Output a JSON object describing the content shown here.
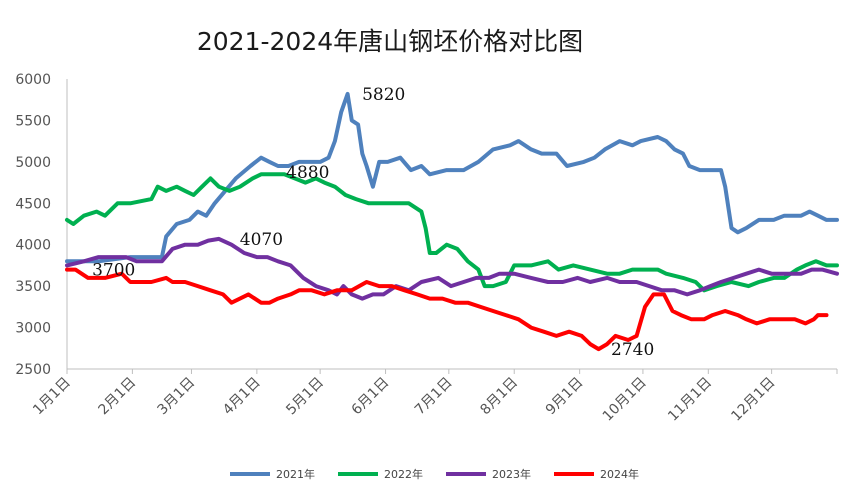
{
  "chart_data": {
    "type": "line",
    "title": "2021-2024年唐山钢坯价格对比图",
    "xlabel": "",
    "ylabel": "",
    "ylim": [
      2500,
      6000
    ],
    "yticks": [
      2500,
      3000,
      3500,
      4000,
      4500,
      5000,
      5500,
      6000
    ],
    "xlim": [
      0,
      365
    ],
    "xticks": [
      {
        "label": "1月1日",
        "day": 0
      },
      {
        "label": "2月1日",
        "day": 31
      },
      {
        "label": "3月1日",
        "day": 59
      },
      {
        "label": "4月1日",
        "day": 90
      },
      {
        "label": "5月1日",
        "day": 120
      },
      {
        "label": "6月1日",
        "day": 151
      },
      {
        "label": "7月1日",
        "day": 181
      },
      {
        "label": "8月1日",
        "day": 212
      },
      {
        "label": "9月1日",
        "day": 243
      },
      {
        "label": "10月1日",
        "day": 273
      },
      {
        "label": "11月1日",
        "day": 304
      },
      {
        "label": "12月1日",
        "day": 334
      }
    ],
    "grid": false,
    "legend_position": "bottom",
    "series": [
      {
        "name": "2021年",
        "color": "#4f81bd",
        "points": [
          [
            0,
            3800
          ],
          [
            15,
            3800
          ],
          [
            30,
            3850
          ],
          [
            45,
            3850
          ],
          [
            47,
            4100
          ],
          [
            52,
            4250
          ],
          [
            58,
            4300
          ],
          [
            62,
            4400
          ],
          [
            66,
            4350
          ],
          [
            70,
            4500
          ],
          [
            75,
            4650
          ],
          [
            80,
            4800
          ],
          [
            87,
            4950
          ],
          [
            92,
            5050
          ],
          [
            96,
            5000
          ],
          [
            100,
            4950
          ],
          [
            105,
            4950
          ],
          [
            110,
            5000
          ],
          [
            120,
            5000
          ],
          [
            124,
            5050
          ],
          [
            127,
            5250
          ],
          [
            130,
            5600
          ],
          [
            133,
            5820
          ],
          [
            135,
            5500
          ],
          [
            138,
            5450
          ],
          [
            140,
            5100
          ],
          [
            142,
            4950
          ],
          [
            145,
            4700
          ],
          [
            148,
            5000
          ],
          [
            152,
            5000
          ],
          [
            158,
            5050
          ],
          [
            163,
            4900
          ],
          [
            168,
            4950
          ],
          [
            172,
            4850
          ],
          [
            180,
            4900
          ],
          [
            188,
            4900
          ],
          [
            195,
            5000
          ],
          [
            202,
            5150
          ],
          [
            210,
            5200
          ],
          [
            214,
            5250
          ],
          [
            220,
            5150
          ],
          [
            225,
            5100
          ],
          [
            232,
            5100
          ],
          [
            237,
            4950
          ],
          [
            245,
            5000
          ],
          [
            250,
            5050
          ],
          [
            255,
            5150
          ],
          [
            262,
            5250
          ],
          [
            268,
            5200
          ],
          [
            272,
            5250
          ],
          [
            280,
            5300
          ],
          [
            284,
            5250
          ],
          [
            288,
            5150
          ],
          [
            292,
            5100
          ],
          [
            295,
            4950
          ],
          [
            300,
            4900
          ],
          [
            310,
            4900
          ],
          [
            312,
            4700
          ],
          [
            315,
            4200
          ],
          [
            318,
            4150
          ],
          [
            322,
            4200
          ],
          [
            328,
            4300
          ],
          [
            335,
            4300
          ],
          [
            340,
            4350
          ],
          [
            348,
            4350
          ],
          [
            352,
            4400
          ],
          [
            356,
            4350
          ],
          [
            360,
            4300
          ],
          [
            365,
            4300
          ]
        ]
      },
      {
        "name": "2022年",
        "color": "#00b050",
        "points": [
          [
            0,
            4300
          ],
          [
            3,
            4250
          ],
          [
            8,
            4350
          ],
          [
            14,
            4400
          ],
          [
            18,
            4350
          ],
          [
            24,
            4500
          ],
          [
            30,
            4500
          ],
          [
            40,
            4550
          ],
          [
            43,
            4700
          ],
          [
            47,
            4650
          ],
          [
            52,
            4700
          ],
          [
            56,
            4650
          ],
          [
            60,
            4600
          ],
          [
            64,
            4700
          ],
          [
            68,
            4800
          ],
          [
            72,
            4700
          ],
          [
            77,
            4650
          ],
          [
            82,
            4700
          ],
          [
            88,
            4800
          ],
          [
            92,
            4850
          ],
          [
            97,
            4850
          ],
          [
            103,
            4850
          ],
          [
            108,
            4800
          ],
          [
            113,
            4750
          ],
          [
            118,
            4800
          ],
          [
            122,
            4750
          ],
          [
            127,
            4700
          ],
          [
            132,
            4600
          ],
          [
            137,
            4550
          ],
          [
            143,
            4500
          ],
          [
            150,
            4500
          ],
          [
            155,
            4500
          ],
          [
            162,
            4500
          ],
          [
            168,
            4400
          ],
          [
            170,
            4200
          ],
          [
            172,
            3900
          ],
          [
            175,
            3900
          ],
          [
            180,
            4000
          ],
          [
            185,
            3950
          ],
          [
            190,
            3800
          ],
          [
            195,
            3700
          ],
          [
            198,
            3500
          ],
          [
            202,
            3500
          ],
          [
            208,
            3550
          ],
          [
            212,
            3750
          ],
          [
            220,
            3750
          ],
          [
            228,
            3800
          ],
          [
            233,
            3700
          ],
          [
            240,
            3750
          ],
          [
            248,
            3700
          ],
          [
            256,
            3650
          ],
          [
            262,
            3650
          ],
          [
            268,
            3700
          ],
          [
            274,
            3700
          ],
          [
            280,
            3700
          ],
          [
            284,
            3650
          ],
          [
            292,
            3600
          ],
          [
            298,
            3550
          ],
          [
            302,
            3450
          ],
          [
            308,
            3500
          ],
          [
            315,
            3550
          ],
          [
            323,
            3500
          ],
          [
            328,
            3550
          ],
          [
            335,
            3600
          ],
          [
            340,
            3600
          ],
          [
            346,
            3700
          ],
          [
            350,
            3750
          ],
          [
            355,
            3800
          ],
          [
            360,
            3750
          ],
          [
            365,
            3750
          ]
        ]
      },
      {
        "name": "2023年",
        "color": "#7030a0",
        "points": [
          [
            0,
            3750
          ],
          [
            8,
            3800
          ],
          [
            15,
            3850
          ],
          [
            22,
            3850
          ],
          [
            28,
            3850
          ],
          [
            33,
            3800
          ],
          [
            38,
            3800
          ],
          [
            45,
            3800
          ],
          [
            50,
            3950
          ],
          [
            56,
            4000
          ],
          [
            62,
            4000
          ],
          [
            67,
            4050
          ],
          [
            72,
            4070
          ],
          [
            78,
            4000
          ],
          [
            84,
            3900
          ],
          [
            90,
            3850
          ],
          [
            95,
            3850
          ],
          [
            100,
            3800
          ],
          [
            106,
            3750
          ],
          [
            112,
            3600
          ],
          [
            118,
            3500
          ],
          [
            124,
            3450
          ],
          [
            128,
            3400
          ],
          [
            131,
            3500
          ],
          [
            135,
            3400
          ],
          [
            140,
            3350
          ],
          [
            145,
            3400
          ],
          [
            150,
            3400
          ],
          [
            156,
            3500
          ],
          [
            162,
            3450
          ],
          [
            168,
            3550
          ],
          [
            176,
            3600
          ],
          [
            182,
            3500
          ],
          [
            188,
            3550
          ],
          [
            194,
            3600
          ],
          [
            200,
            3600
          ],
          [
            205,
            3650
          ],
          [
            212,
            3650
          ],
          [
            220,
            3600
          ],
          [
            228,
            3550
          ],
          [
            235,
            3550
          ],
          [
            242,
            3600
          ],
          [
            248,
            3550
          ],
          [
            256,
            3600
          ],
          [
            262,
            3550
          ],
          [
            270,
            3550
          ],
          [
            276,
            3500
          ],
          [
            282,
            3450
          ],
          [
            288,
            3450
          ],
          [
            294,
            3400
          ],
          [
            300,
            3450
          ],
          [
            305,
            3500
          ],
          [
            310,
            3550
          ],
          [
            316,
            3600
          ],
          [
            322,
            3650
          ],
          [
            328,
            3700
          ],
          [
            334,
            3650
          ],
          [
            342,
            3650
          ],
          [
            348,
            3650
          ],
          [
            353,
            3700
          ],
          [
            358,
            3700
          ],
          [
            365,
            3650
          ]
        ]
      },
      {
        "name": "2024年",
        "color": "#ff0000",
        "points": [
          [
            0,
            3700
          ],
          [
            4,
            3700
          ],
          [
            10,
            3600
          ],
          [
            18,
            3600
          ],
          [
            26,
            3650
          ],
          [
            30,
            3550
          ],
          [
            40,
            3550
          ],
          [
            47,
            3600
          ],
          [
            50,
            3550
          ],
          [
            56,
            3550
          ],
          [
            62,
            3500
          ],
          [
            68,
            3450
          ],
          [
            74,
            3400
          ],
          [
            78,
            3300
          ],
          [
            82,
            3350
          ],
          [
            86,
            3400
          ],
          [
            92,
            3300
          ],
          [
            96,
            3300
          ],
          [
            100,
            3350
          ],
          [
            106,
            3400
          ],
          [
            110,
            3450
          ],
          [
            116,
            3450
          ],
          [
            122,
            3400
          ],
          [
            128,
            3450
          ],
          [
            135,
            3450
          ],
          [
            142,
            3550
          ],
          [
            148,
            3500
          ],
          [
            154,
            3500
          ],
          [
            160,
            3450
          ],
          [
            166,
            3400
          ],
          [
            172,
            3350
          ],
          [
            178,
            3350
          ],
          [
            184,
            3300
          ],
          [
            190,
            3300
          ],
          [
            196,
            3250
          ],
          [
            202,
            3200
          ],
          [
            208,
            3150
          ],
          [
            214,
            3100
          ],
          [
            220,
            3000
          ],
          [
            226,
            2950
          ],
          [
            232,
            2900
          ],
          [
            238,
            2950
          ],
          [
            244,
            2900
          ],
          [
            248,
            2800
          ],
          [
            252,
            2740
          ],
          [
            256,
            2800
          ],
          [
            260,
            2900
          ],
          [
            266,
            2850
          ],
          [
            270,
            2900
          ],
          [
            274,
            3250
          ],
          [
            278,
            3400
          ],
          [
            283,
            3400
          ],
          [
            287,
            3200
          ],
          [
            291,
            3150
          ],
          [
            296,
            3100
          ],
          [
            302,
            3100
          ],
          [
            306,
            3150
          ],
          [
            312,
            3200
          ],
          [
            318,
            3150
          ],
          [
            322,
            3100
          ],
          [
            327,
            3050
          ],
          [
            333,
            3100
          ],
          [
            339,
            3100
          ],
          [
            345,
            3100
          ],
          [
            350,
            3050
          ],
          [
            354,
            3100
          ],
          [
            356,
            3150
          ],
          [
            360,
            3150
          ]
        ]
      }
    ],
    "annotations": [
      {
        "text": "5820",
        "day": 138,
        "value": 5820,
        "series": "2021年"
      },
      {
        "text": "4880",
        "day": 102,
        "value": 4880,
        "series": "2022年"
      },
      {
        "text": "4070",
        "day": 80,
        "value": 4070,
        "series": "2023年"
      },
      {
        "text": "3700",
        "day": 10,
        "value": 3700,
        "series": "2024年"
      },
      {
        "text": "2740",
        "day": 256,
        "value": 2740,
        "series": "2024年"
      }
    ]
  }
}
